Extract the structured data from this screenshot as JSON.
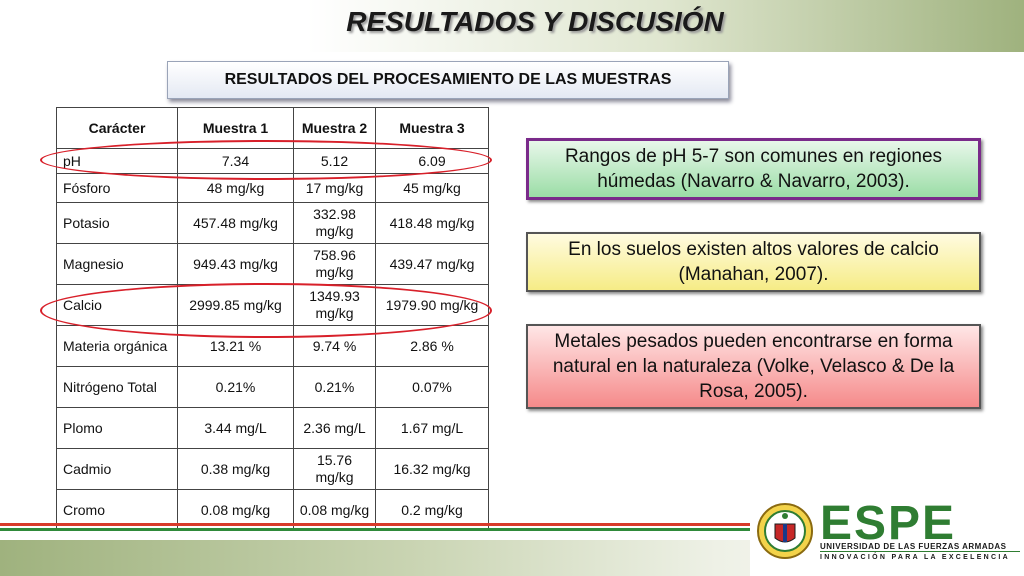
{
  "title": "RESULTADOS Y DISCUSIÓN",
  "subtitle": "RESULTADOS DEL PROCESAMIENTO DE LAS MUESTRAS",
  "table": {
    "headers": [
      "Carácter",
      "Muestra 1",
      "Muestra 2",
      "Muestra 3"
    ],
    "rows": [
      [
        "pH",
        "7.34",
        "5.12",
        "6.09"
      ],
      [
        "Fósforo",
        "48 mg/kg",
        "17 mg/kg",
        "45 mg/kg"
      ],
      [
        "Potasio",
        "457.48 mg/kg",
        "332.98 mg/kg",
        "418.48 mg/kg"
      ],
      [
        "Magnesio",
        "949.43 mg/kg",
        "758.96 mg/kg",
        "439.47 mg/kg"
      ],
      [
        "Calcio",
        "2999.85 mg/kg",
        "1349.93 mg/kg",
        "1979.90 mg/kg"
      ],
      [
        "Materia orgánica",
        "13.21 %",
        "9.74 %",
        "2.86 %"
      ],
      [
        "Nitrógeno Total",
        "0.21%",
        "0.21%",
        "0.07%"
      ],
      [
        "Plomo",
        "3.44 mg/L",
        "2.36 mg/L",
        "1.67 mg/L"
      ],
      [
        "Cadmio",
        "0.38 mg/kg",
        "15.76 mg/kg",
        "16.32 mg/kg"
      ],
      [
        "Cromo",
        "0.08 mg/kg",
        "0.08 mg/kg",
        "0.2 mg/kg"
      ]
    ]
  },
  "notes": {
    "ph": "Rangos de pH 5-7 son comunes en regiones húmedas (Navarro & Navarro, 2003).",
    "calcio": "En los suelos existen altos valores de calcio (Manahan, 2007).",
    "metales": "Metales pesados pueden encontrarse en forma natural en la naturaleza  (Volke, Velasco &  De la Rosa, 2005)."
  },
  "logo": {
    "name": "ESPE",
    "university": "UNIVERSIDAD DE LAS FUERZAS ARMADAS",
    "motto": "INNOVACIÓN PARA LA EXCELENCIA",
    "seal_icon": "university-seal-icon"
  },
  "colors": {
    "highlight_oval": "#d8202a",
    "brand_green": "#2f7d32",
    "ph_box_border": "#7a2a8a"
  }
}
